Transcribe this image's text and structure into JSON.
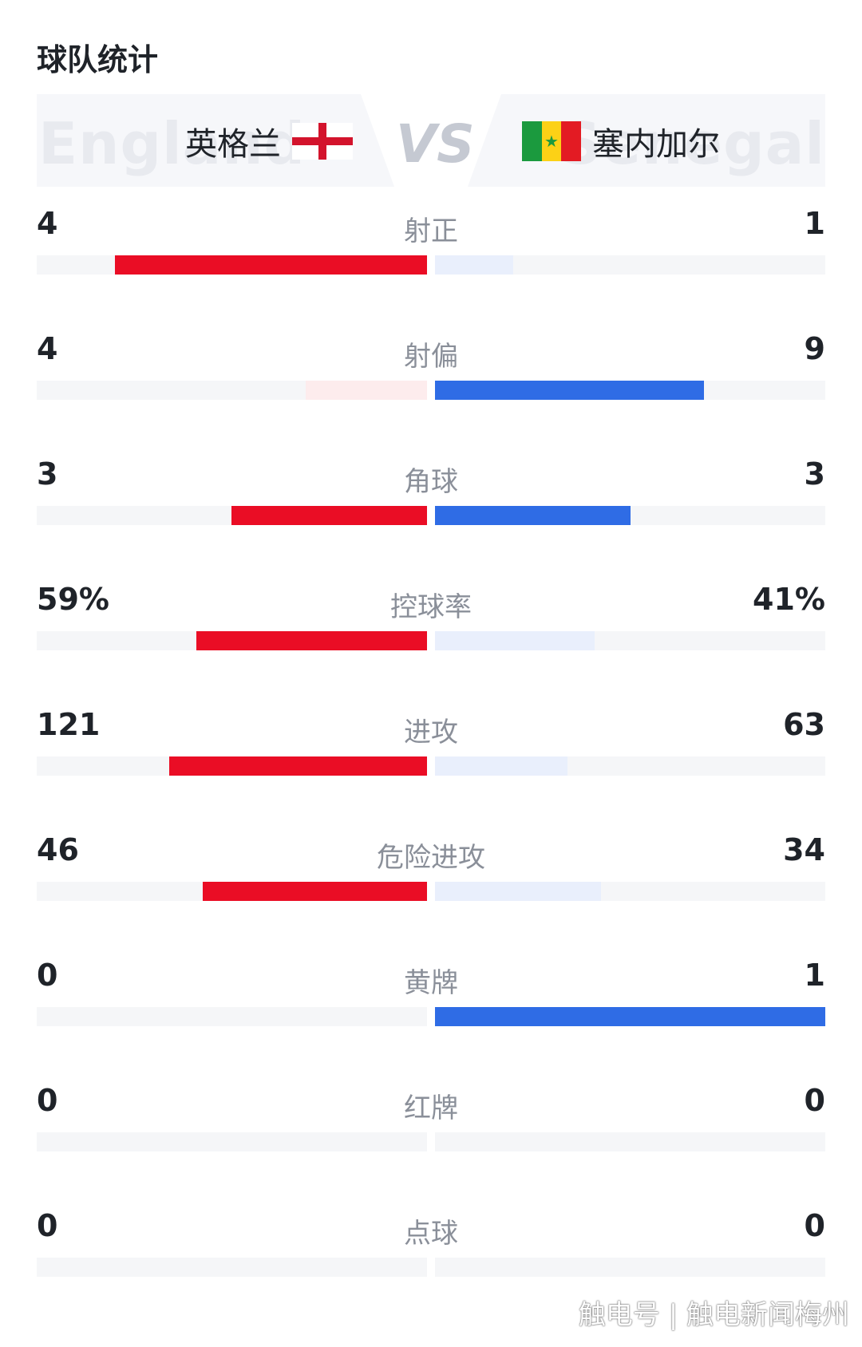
{
  "title": "球队统计",
  "home": {
    "name": "英格兰",
    "ghost": "England",
    "flag_icon": "england-flag-icon",
    "color": "#ea0d25",
    "light_color": "#fdeced"
  },
  "away": {
    "name": "塞内加尔",
    "ghost": "Senegal",
    "flag_icon": "senegal-flag-icon",
    "color": "#2f6ce5",
    "light_color": "#e9effc"
  },
  "vs": "VS",
  "stats": [
    {
      "label": "射正",
      "home": "4",
      "away": "1",
      "home_share": 0.8,
      "away_share": 0.2,
      "leader": "home"
    },
    {
      "label": "射偏",
      "home": "4",
      "away": "9",
      "home_share": 0.31,
      "away_share": 0.69,
      "leader": "away"
    },
    {
      "label": "角球",
      "home": "3",
      "away": "3",
      "home_share": 0.5,
      "away_share": 0.5,
      "leader": "both"
    },
    {
      "label": "控球率",
      "home": "59%",
      "away": "41%",
      "home_share": 0.59,
      "away_share": 0.41,
      "leader": "home"
    },
    {
      "label": "进攻",
      "home": "121",
      "away": "63",
      "home_share": 0.66,
      "away_share": 0.34,
      "leader": "home"
    },
    {
      "label": "危险进攻",
      "home": "46",
      "away": "34",
      "home_share": 0.575,
      "away_share": 0.425,
      "leader": "home"
    },
    {
      "label": "黄牌",
      "home": "0",
      "away": "1",
      "home_share": 0,
      "away_share": 1,
      "leader": "away"
    },
    {
      "label": "红牌",
      "home": "0",
      "away": "0",
      "home_share": 0,
      "away_share": 0,
      "leader": "none"
    },
    {
      "label": "点球",
      "home": "0",
      "away": "0",
      "home_share": 0,
      "away_share": 0,
      "leader": "none"
    }
  ],
  "watermark": "触电号 | 触电新闻梅州"
}
